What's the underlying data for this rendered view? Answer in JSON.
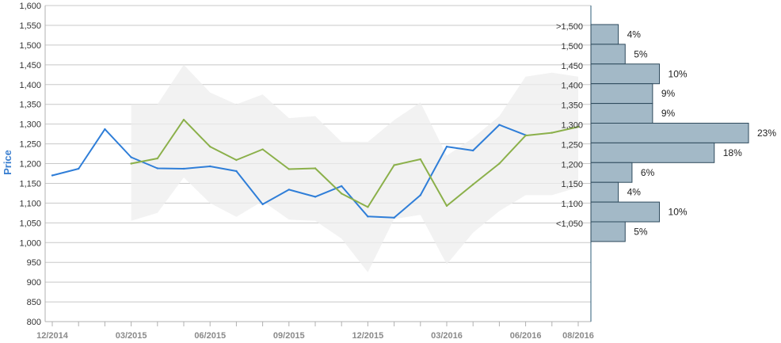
{
  "chart_data": {
    "type": "line",
    "ylabel": "Price",
    "ylim": [
      800,
      1600
    ],
    "y_ticks": [
      "800",
      "850",
      "900",
      "950",
      "1,000",
      "1,050",
      "1,100",
      "1,150",
      "1,200",
      "1,250",
      "1,300",
      "1,350",
      "1,400",
      "1,450",
      "1,500",
      "1,550",
      "1,600"
    ],
    "x_ticks": [
      "12/2014",
      "03/2015",
      "06/2015",
      "09/2015",
      "12/2015",
      "03/2016",
      "06/2016",
      "08/2016"
    ],
    "grid": true,
    "colors": {
      "actual": "#2f7ed8",
      "forecast": "#8bb04a",
      "band": "#eeeeee",
      "hist_fill": "#a3b9c7",
      "hist_stroke": "#2e4a5c"
    },
    "series": [
      {
        "key": "actual",
        "x": [
          "12/2014",
          "01/2015",
          "02/2015",
          "03/2015",
          "04/2015",
          "05/2015",
          "06/2015",
          "07/2015",
          "08/2015",
          "09/2015",
          "10/2015",
          "11/2015",
          "12/2015",
          "01/2016",
          "02/2016",
          "03/2016",
          "04/2016",
          "05/2016",
          "06/2016"
        ],
        "values": [
          1170,
          1187,
          1287,
          1216,
          1188,
          1187,
          1193,
          1181,
          1097,
          1134,
          1116,
          1143,
          1066,
          1063,
          1120,
          1243,
          1233,
          1298,
          1272
        ]
      },
      {
        "key": "forecast",
        "x": [
          "03/2015",
          "04/2015",
          "05/2015",
          "06/2015",
          "07/2015",
          "08/2015",
          "09/2015",
          "10/2015",
          "11/2015",
          "12/2015",
          "01/2016",
          "02/2016",
          "03/2016",
          "04/2016",
          "05/2016",
          "06/2016",
          "07/2016",
          "08/2016"
        ],
        "values": [
          1200,
          1213,
          1311,
          1243,
          1209,
          1236,
          1186,
          1188,
          1124,
          1090,
          1196,
          1211,
          1093,
          1147,
          1200,
          1271,
          1278,
          1293
        ]
      }
    ],
    "band": {
      "x": [
        "03/2015",
        "04/2015",
        "05/2015",
        "06/2015",
        "07/2015",
        "08/2015",
        "09/2015",
        "10/2015",
        "11/2015",
        "12/2015",
        "01/2016",
        "02/2016",
        "03/2016",
        "04/2016",
        "05/2016",
        "06/2016",
        "07/2016",
        "08/2016"
      ],
      "upper": [
        1350,
        1350,
        1450,
        1380,
        1350,
        1375,
        1315,
        1320,
        1255,
        1255,
        1310,
        1355,
        1220,
        1265,
        1320,
        1420,
        1430,
        1420
      ],
      "lower": [
        1055,
        1075,
        1165,
        1100,
        1065,
        1105,
        1058,
        1055,
        1010,
        925,
        1060,
        1070,
        945,
        1025,
        1080,
        1120,
        1120,
        1140
      ]
    },
    "histogram": {
      "bins": [
        ">1,500",
        "1,500",
        "1,450",
        "1,400",
        "1,350",
        "1,300",
        "1,250",
        "1,200",
        "1,150",
        "1,100",
        "<1,050"
      ],
      "percent": [
        4,
        5,
        10,
        9,
        9,
        23,
        18,
        6,
        4,
        10,
        5
      ],
      "labels": [
        "4%",
        "5%",
        "10%",
        "9%",
        "9%",
        "23%",
        "18%",
        "6%",
        "4%",
        "10%",
        "5%"
      ]
    }
  }
}
